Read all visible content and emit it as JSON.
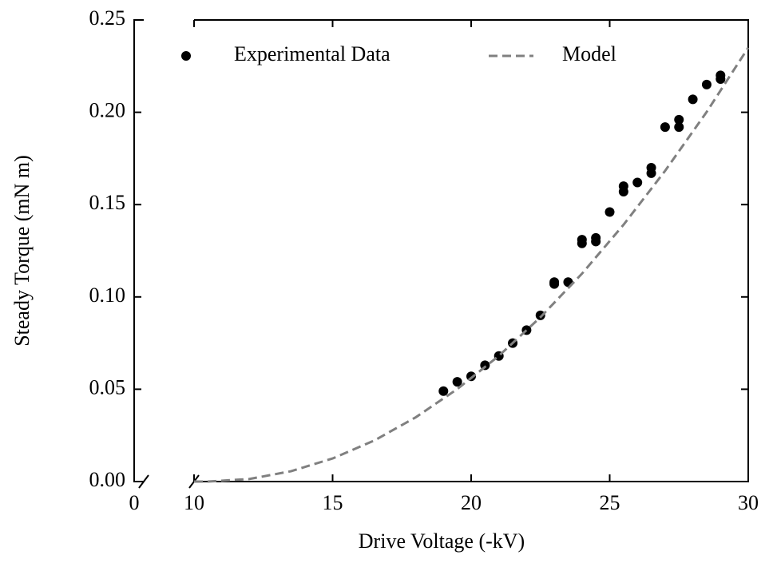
{
  "chart_data": {
    "type": "scatter",
    "xlabel": "Drive Voltage (-kV)",
    "ylabel": "Steady Torque (mN m)",
    "xlim": [
      0,
      30
    ],
    "x_break": [
      0.3,
      10
    ],
    "xticks": [
      0,
      10,
      15,
      20,
      25,
      30
    ],
    "ylim": [
      0,
      0.25
    ],
    "yticks": [
      {
        "value": 0,
        "label": "0.00"
      },
      {
        "value": 0.05,
        "label": "0.05"
      },
      {
        "value": 0.1,
        "label": "0.10"
      },
      {
        "value": 0.15,
        "label": "0.15"
      },
      {
        "value": 0.2,
        "label": "0.20"
      },
      {
        "value": 0.25,
        "label": "0.25"
      }
    ],
    "legend": "top",
    "series": [
      {
        "name": "Experimental Data",
        "kind": "scatter",
        "color": "#000000",
        "x": [
          19,
          19.5,
          20,
          20.5,
          21,
          21.5,
          22,
          22.5,
          23,
          23,
          23.5,
          24,
          24,
          24.5,
          24.5,
          25,
          25.5,
          25.5,
          26,
          26.5,
          26.5,
          27,
          27.5,
          27.5,
          28,
          28.5,
          29,
          29
        ],
        "values": [
          0.049,
          0.054,
          0.057,
          0.063,
          0.068,
          0.075,
          0.082,
          0.09,
          0.107,
          0.108,
          0.108,
          0.129,
          0.131,
          0.13,
          0.132,
          0.146,
          0.157,
          0.16,
          0.162,
          0.167,
          0.17,
          0.192,
          0.192,
          0.196,
          0.207,
          0.215,
          0.218,
          0.22
        ]
      },
      {
        "name": "Model",
        "kind": "line",
        "color": "#808080",
        "x": [
          10,
          10.5,
          12,
          13.5,
          15,
          16.5,
          18,
          19.5,
          21,
          22.5,
          24,
          25.5,
          27,
          28.5,
          30
        ],
        "values": [
          0,
          0,
          0.0014,
          0.0056,
          0.0125,
          0.0222,
          0.0348,
          0.0501,
          0.0681,
          0.089,
          0.1126,
          0.1391,
          0.1683,
          0.2002,
          0.235
        ]
      }
    ]
  }
}
